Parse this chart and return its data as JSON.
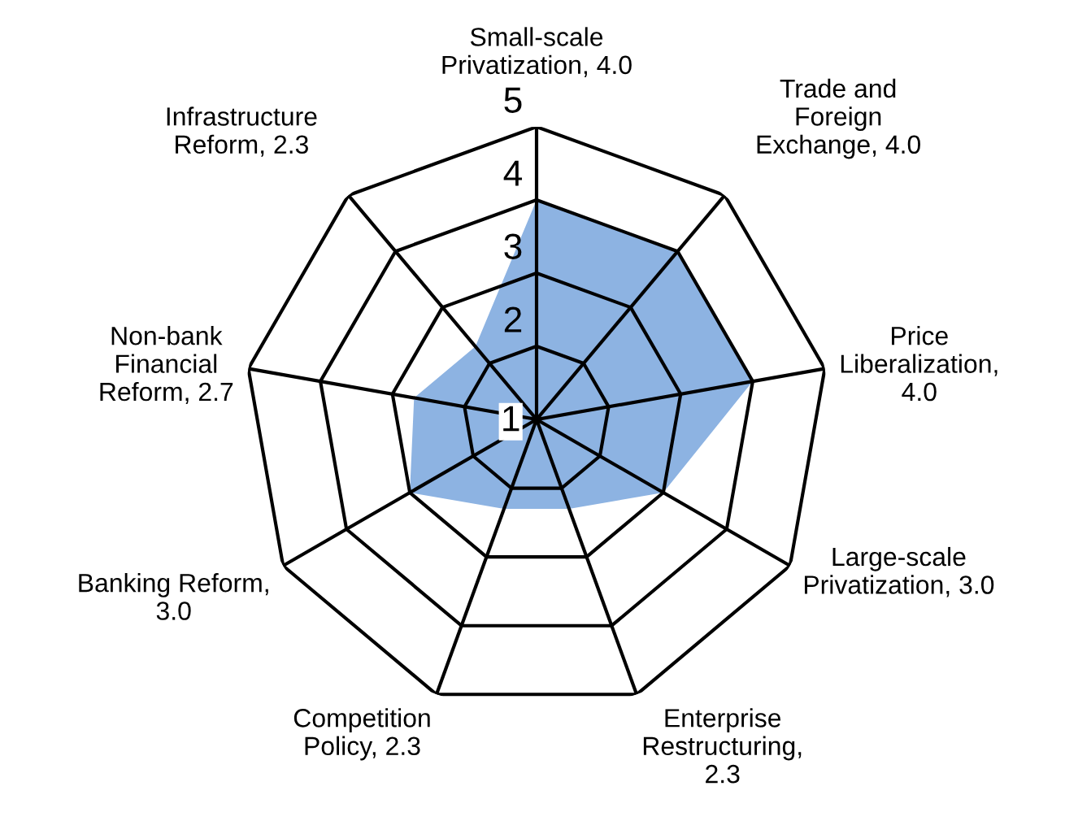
{
  "chart_data": {
    "type": "radar",
    "categories": [
      "Small-scale\nPrivatization, 4.0",
      "Trade and\nForeign\nExchange, 4.0",
      "Price\nLiberalization,\n4.0",
      "Large-scale\nPrivatization, 3.0",
      "Enterprise\nRestructuring,\n2.3",
      "Competition\nPolicy, 2.3",
      "Banking Reform,\n3.0",
      "Non-bank\nFinancial\nReform, 2.7",
      "Infrastructure\nReform, 2.3"
    ],
    "series": [
      {
        "color": "#8db3e2",
        "values": [
          4.0,
          4.0,
          4.0,
          3.0,
          2.3,
          2.3,
          3.0,
          2.7,
          2.3
        ]
      }
    ],
    "ylim": [
      1,
      5
    ],
    "yticks": [
      1,
      2,
      3,
      4,
      5
    ],
    "grid": true
  }
}
